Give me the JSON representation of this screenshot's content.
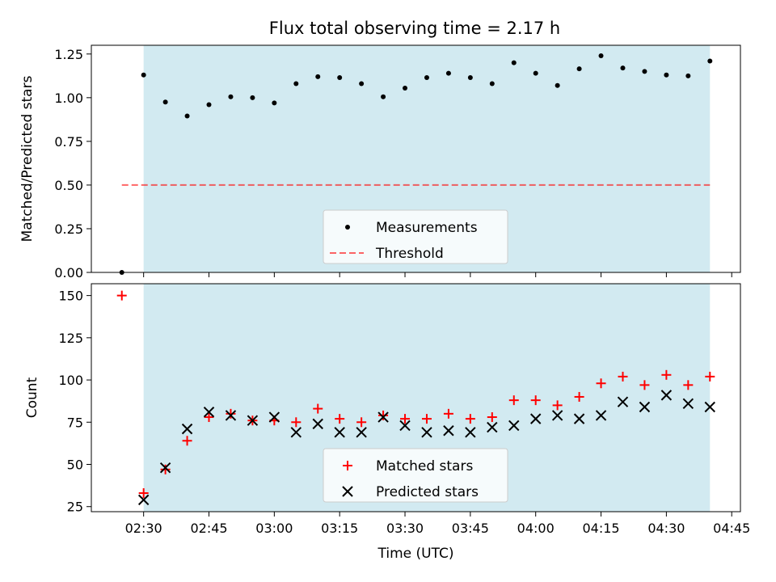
{
  "figure": {
    "title": "Flux total observing time = 2.17 h"
  },
  "colors": {
    "shade": "#add8e6",
    "threshold": "#ff0000",
    "matched": "#ff0000",
    "predicted": "#000000",
    "measurements": "#000000"
  },
  "chart_data": [
    {
      "type": "scatter",
      "ylabel": "Matched/Predicted stars",
      "xlabel": "",
      "xlim": [
        "02:18",
        "04:47"
      ],
      "ylim": [
        0,
        1.3
      ],
      "yticks": [
        0.0,
        0.25,
        0.5,
        0.75,
        1.0,
        1.25
      ],
      "ytick_labels": [
        "0.00",
        "0.25",
        "0.50",
        "0.75",
        "1.00",
        "1.25"
      ],
      "shaded_span": [
        "02:30",
        "04:40"
      ],
      "legend_position": "lower center",
      "series": [
        {
          "name": "Measurements",
          "marker": "dot",
          "x": [
            "02:25",
            "02:30",
            "02:35",
            "02:40",
            "02:45",
            "02:50",
            "02:55",
            "03:00",
            "03:05",
            "03:10",
            "03:15",
            "03:20",
            "03:25",
            "03:30",
            "03:35",
            "03:40",
            "03:45",
            "03:50",
            "03:55",
            "04:00",
            "04:05",
            "04:10",
            "04:15",
            "04:20",
            "04:25",
            "04:30",
            "04:35",
            "04:40"
          ],
          "values": [
            0.0,
            1.13,
            0.975,
            0.895,
            0.96,
            1.005,
            1.0,
            0.97,
            1.08,
            1.12,
            1.115,
            1.08,
            1.005,
            1.055,
            1.115,
            1.14,
            1.115,
            1.08,
            1.2,
            1.14,
            1.07,
            1.165,
            1.24,
            1.17,
            1.15,
            1.13,
            1.125,
            1.21
          ]
        },
        {
          "name": "Threshold",
          "line": "dashed",
          "x": [
            "02:25",
            "04:40"
          ],
          "values": [
            0.5,
            0.5
          ]
        }
      ]
    },
    {
      "type": "scatter",
      "ylabel": "Count",
      "xlabel": "Time (UTC)",
      "xlim": [
        "02:18",
        "04:47"
      ],
      "ylim": [
        22,
        157
      ],
      "yticks": [
        25,
        50,
        75,
        100,
        125,
        150
      ],
      "ytick_labels": [
        "25",
        "50",
        "75",
        "100",
        "125",
        "150"
      ],
      "xticks": [
        "02:30",
        "02:45",
        "03:00",
        "03:15",
        "03:30",
        "03:45",
        "04:00",
        "04:15",
        "04:30",
        "04:45"
      ],
      "shaded_span": [
        "02:30",
        "04:40"
      ],
      "legend_position": "lower center",
      "series": [
        {
          "name": "Matched stars",
          "marker": "plus",
          "x": [
            "02:25",
            "02:30",
            "02:35",
            "02:40",
            "02:45",
            "02:50",
            "02:55",
            "03:00",
            "03:05",
            "03:10",
            "03:15",
            "03:20",
            "03:25",
            "03:30",
            "03:35",
            "03:40",
            "03:45",
            "03:50",
            "03:55",
            "04:00",
            "04:05",
            "04:10",
            "04:15",
            "04:20",
            "04:25",
            "04:30",
            "04:35",
            "04:40"
          ],
          "values": [
            150,
            33,
            47,
            64,
            78,
            80,
            76,
            76,
            75,
            83,
            77,
            75,
            79,
            77,
            77,
            80,
            77,
            78,
            88,
            88,
            85,
            90,
            98,
            102,
            97,
            103,
            97,
            102
          ]
        },
        {
          "name": "Predicted stars",
          "marker": "x",
          "x": [
            "02:30",
            "02:35",
            "02:40",
            "02:45",
            "02:50",
            "02:55",
            "03:00",
            "03:05",
            "03:10",
            "03:15",
            "03:20",
            "03:25",
            "03:30",
            "03:35",
            "03:40",
            "03:45",
            "03:50",
            "03:55",
            "04:00",
            "04:05",
            "04:10",
            "04:15",
            "04:20",
            "04:25",
            "04:30",
            "04:35",
            "04:40"
          ],
          "values": [
            29,
            48,
            71,
            81,
            79,
            76,
            78,
            69,
            74,
            69,
            69,
            78,
            73,
            69,
            70,
            69,
            72,
            73,
            77,
            79,
            77,
            79,
            87,
            84,
            91,
            86,
            84
          ]
        }
      ]
    }
  ]
}
